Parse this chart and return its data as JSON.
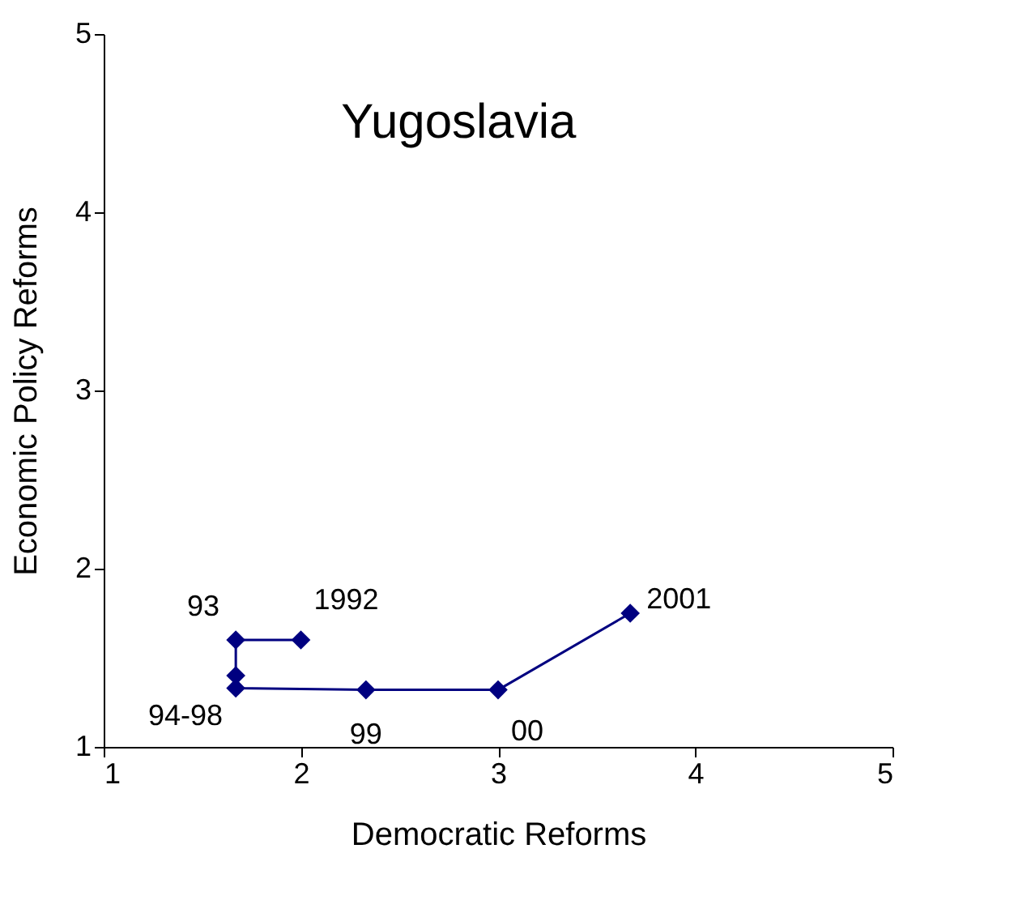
{
  "chart_data": {
    "type": "line",
    "title": "Yugoslavia",
    "xlabel": "Democratic Reforms",
    "ylabel": "Economic Policy Reforms",
    "x": [
      2,
      1.67,
      1.67,
      1.67,
      2.33,
      3,
      3.67
    ],
    "series": [
      {
        "color": "#000080",
        "values": [
          1.6,
          1.6,
          1.4,
          1.33,
          1.32,
          1.32,
          1.75
        ]
      }
    ],
    "xlim": [
      1,
      5
    ],
    "xticks": [
      1,
      2,
      3,
      4,
      5
    ],
    "ylim": [
      1,
      5
    ],
    "yticks": [
      1,
      2,
      3,
      4,
      5
    ],
    "grid": false,
    "marker": "diamond",
    "line_style": "solid",
    "annotations": [
      {
        "text": "1992",
        "x": 2,
        "y": 1.6
      },
      {
        "text": "93",
        "x": 1.67,
        "y": 1.6
      },
      {
        "text": "94-98",
        "x": 1.67,
        "y": 1.33
      },
      {
        "text": "99",
        "x": 2.33,
        "y": 1.32
      },
      {
        "text": "00",
        "x": 3,
        "y": 1.32
      },
      {
        "text": "2001",
        "x": 3.67,
        "y": 1.75
      }
    ]
  }
}
